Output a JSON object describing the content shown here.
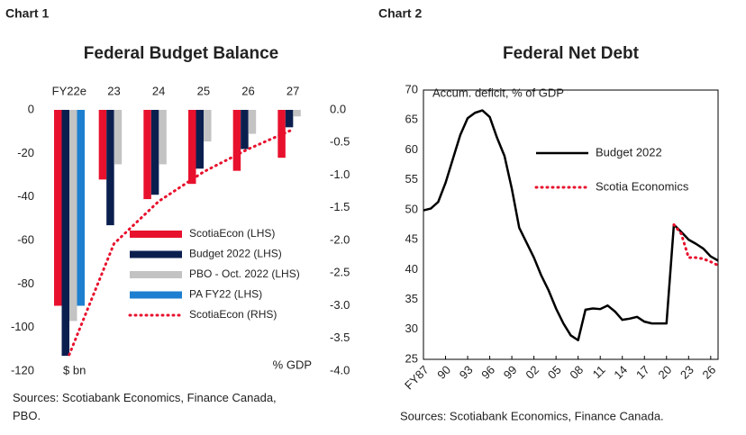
{
  "chart_data": [
    {
      "type": "bar",
      "label": "Chart 1",
      "title": "Federal Budget Balance",
      "categories": [
        "FY22e",
        "23",
        "24",
        "25",
        "26",
        "27"
      ],
      "series": [
        {
          "name": "ScotiaEcon (LHS)",
          "color": "#e8112d",
          "values": [
            -90,
            -32,
            -41,
            -34,
            -28,
            -22
          ]
        },
        {
          "name": "Budget 2022 (LHS)",
          "color": "#0b1f4f",
          "values": [
            -113,
            -53,
            -39,
            -27,
            -18,
            -8
          ]
        },
        {
          "name": "PBO - Oct. 2022 (LHS)",
          "color": "#c3c3c3",
          "values": [
            -97,
            -25,
            -25,
            -14.5,
            -11,
            -3
          ]
        },
        {
          "name": "PA FY22 (LHS)",
          "color": "#1e7fd0",
          "values": [
            -90,
            null,
            null,
            null,
            null,
            null
          ]
        },
        {
          "name": "ScotiaEcon (RHS)",
          "color": "#e8112d",
          "type": "line",
          "style": "dotted",
          "axis": "y2",
          "values": [
            -3.75,
            -2.05,
            -1.4,
            -0.95,
            -0.6,
            -0.3
          ]
        }
      ],
      "ylim": [
        -120,
        0
      ],
      "yticks": [
        0,
        -20,
        -40,
        -60,
        -80,
        -100,
        -120
      ],
      "y2lim": [
        -4,
        0
      ],
      "y2ticks": [
        {
          "value": 0,
          "label": "0.0"
        },
        -0.5,
        {
          "value": -1,
          "label": "-1.0"
        },
        -1.5,
        {
          "value": -2,
          "label": "-2.0"
        },
        -2.5,
        {
          "value": -3,
          "label": "-3.0"
        },
        -3.5,
        {
          "value": -4,
          "label": "-4.0"
        }
      ],
      "ylabel": "$ bn",
      "y2label": "% GDP",
      "legend": "lower right",
      "source": "Sources: Scotiabank Economics, Finance Canada, PBO."
    },
    {
      "type": "line",
      "label": "Chart 2",
      "title": "Federal Net Debt",
      "x": [
        1987,
        1988,
        1989,
        1990,
        1991,
        1992,
        1993,
        1994,
        1995,
        1996,
        1997,
        1998,
        1999,
        2000,
        2001,
        2002,
        2003,
        2004,
        2005,
        2006,
        2007,
        2008,
        2009,
        2010,
        2011,
        2012,
        2013,
        2014,
        2015,
        2016,
        2017,
        2018,
        2019,
        2020,
        2021,
        2022,
        2023,
        2024,
        2025,
        2026,
        2027
      ],
      "series": [
        {
          "name": "Budget 2022",
          "color": "#000000",
          "style": "solid",
          "values": [
            49.9,
            50.2,
            51.3,
            54.5,
            58.5,
            62.5,
            65.3,
            66.2,
            66.6,
            65.5,
            62.0,
            59.0,
            53.5,
            47.0,
            44.5,
            42.0,
            39.0,
            36.5,
            33.5,
            31.0,
            29.0,
            28.2,
            33.3,
            33.5,
            33.4,
            34.0,
            33.0,
            31.6,
            31.8,
            32.1,
            31.3,
            31.0,
            31.0,
            31.0,
            47.5,
            46.3,
            45.0,
            44.3,
            43.5,
            42.2,
            41.5
          ]
        },
        {
          "name": "Scotia Economics",
          "color": "#e8112d",
          "style": "dotted",
          "values": [
            null,
            null,
            null,
            null,
            null,
            null,
            null,
            null,
            null,
            null,
            null,
            null,
            null,
            null,
            null,
            null,
            null,
            null,
            null,
            null,
            null,
            null,
            null,
            null,
            null,
            null,
            null,
            null,
            null,
            null,
            null,
            null,
            null,
            null,
            47.5,
            46.0,
            42.0,
            42.0,
            41.8,
            41.3,
            40.7
          ]
        }
      ],
      "xlim": [
        1987,
        2027
      ],
      "xticks": [
        {
          "value": 1987,
          "label": "FY87"
        },
        {
          "value": 1990,
          "label": "90"
        },
        {
          "value": 1993,
          "label": "93"
        },
        {
          "value": 1996,
          "label": "96"
        },
        {
          "value": 1999,
          "label": "99"
        },
        {
          "value": 2002,
          "label": "02"
        },
        {
          "value": 2005,
          "label": "05"
        },
        {
          "value": 2008,
          "label": "08"
        },
        {
          "value": 2011,
          "label": "11"
        },
        {
          "value": 2014,
          "label": "14"
        },
        {
          "value": 2017,
          "label": "17"
        },
        {
          "value": 2020,
          "label": "20"
        },
        {
          "value": 2023,
          "label": "23"
        },
        {
          "value": 2026,
          "label": "26"
        }
      ],
      "ylim": [
        25,
        70
      ],
      "yticks": [
        25,
        30,
        35,
        40,
        45,
        50,
        55,
        60,
        65,
        70
      ],
      "ylabel": "Accum. deficit, % of GDP",
      "legend": "upper right",
      "source": "Sources: Scotiabank Economics, Finance Canada."
    }
  ]
}
